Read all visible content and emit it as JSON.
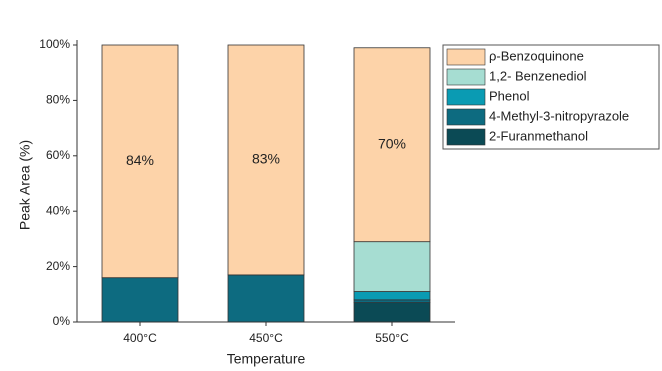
{
  "chart_data": {
    "type": "stacked_bar",
    "x_label": "Temperature",
    "y_label": "Peak Area (%)",
    "categories": [
      "400°C",
      "450°C",
      "550°C"
    ],
    "series": [
      {
        "name": "2-Furanmethanol",
        "color": "#0b4a55",
        "values": [
          0,
          0,
          7
        ]
      },
      {
        "name": "4-Methyl-3-nitropyrazole",
        "color": "#0d6b80",
        "values": [
          16,
          17,
          1
        ]
      },
      {
        "name": "Phenol",
        "color": "#0a9bb3",
        "values": [
          0,
          0,
          3
        ]
      },
      {
        "name": "1,2- Benzenediol",
        "color": "#a6ddd2",
        "values": [
          0,
          0,
          18
        ]
      },
      {
        "name": "ρ-Benzoquinone",
        "color": "#fdd3a9",
        "values": [
          84,
          83,
          70
        ],
        "value_labels": [
          "84%",
          "83%",
          "70%"
        ]
      }
    ],
    "ylim": [
      0,
      100
    ],
    "yticks": [
      {
        "value": 0,
        "label": "0%"
      },
      {
        "value": 20,
        "label": "20%"
      },
      {
        "value": 40,
        "label": "40%"
      },
      {
        "value": 60,
        "label": "60%"
      },
      {
        "value": 80,
        "label": "80%"
      },
      {
        "value": 100,
        "label": "100%"
      }
    ]
  }
}
